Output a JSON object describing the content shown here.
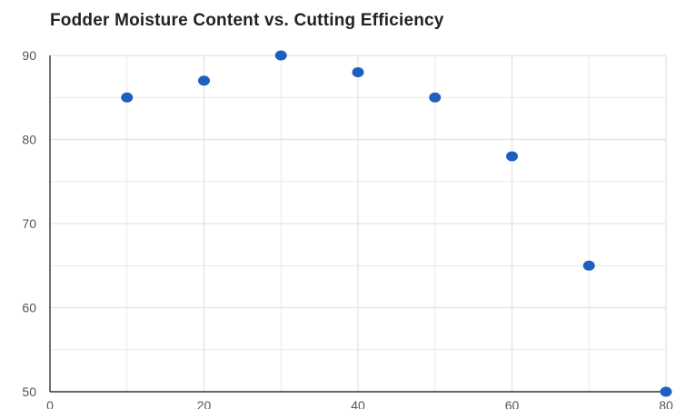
{
  "chart_data": {
    "type": "scatter",
    "title": "Fodder Moisture Content vs. Cutting Efficiency",
    "xlabel": "",
    "ylabel": "",
    "x": [
      10,
      20,
      30,
      40,
      50,
      60,
      70,
      80
    ],
    "y": [
      85,
      87,
      90,
      88,
      85,
      78,
      65,
      50
    ],
    "xlim": [
      0,
      80
    ],
    "ylim": [
      50,
      90
    ],
    "xticks": [
      0,
      20,
      40,
      60,
      80
    ],
    "yticks": [
      50,
      60,
      70,
      80,
      90
    ],
    "grid": true,
    "point_color": "#1f5fbf",
    "grid_color": "#e3e3e3",
    "axis_color": "#333333"
  }
}
